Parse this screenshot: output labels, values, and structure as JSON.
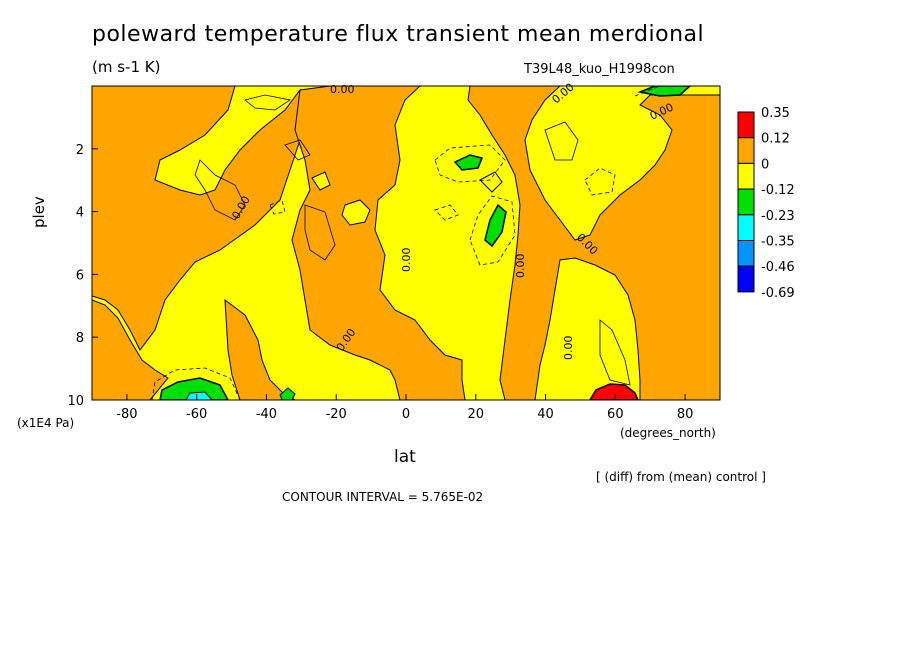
{
  "chart_data": {
    "type": "heatmap",
    "title": "poleward temperature flux transient mean merdional",
    "units": "(m s-1 K)",
    "run_label": "T39L48_kuo_H1998con",
    "xlabel": "lat",
    "x_units": "(degrees_north)",
    "ylabel": "plev",
    "y_units": "(x1E4 Pa)",
    "xlim": [
      -90,
      90
    ],
    "ylim": [
      0,
      10
    ],
    "x_ticks": [
      "-80",
      "-60",
      "-40",
      "-20",
      "0",
      "20",
      "40",
      "60",
      "80"
    ],
    "x_tick_values": [
      -80,
      -60,
      -40,
      -20,
      0,
      20,
      40,
      60,
      80
    ],
    "y_ticks": [
      "2",
      "4",
      "6",
      "8",
      "10"
    ],
    "y_tick_values": [
      2,
      4,
      6,
      8,
      10
    ],
    "legend": {
      "levels": [
        "0.35",
        "0.12",
        "0",
        "-0.12",
        "-0.23",
        "-0.35",
        "-0.46",
        "-0.69"
      ],
      "colors": [
        "#ff0000",
        "#ffa500",
        "#ffff00",
        "#00e000",
        "#00ffff",
        "#0096ff",
        "#0000ff"
      ]
    },
    "contour_labels": [
      "0.00",
      "0.00",
      "0.00",
      "0.00",
      "0.00",
      "0.00",
      "0.00",
      "0.00",
      "0.00",
      "0.00"
    ],
    "contour_interval_text": "CONTOUR INTERVAL = 5.765E-02",
    "note": "[ (diff) from (mean) control ]",
    "colors": {
      "positive": "#ffa500",
      "near_zero_negative": "#ffff00",
      "negative": "#00e000",
      "strong_negative": "#00ffff",
      "strong_positive": "#ff0000"
    }
  }
}
